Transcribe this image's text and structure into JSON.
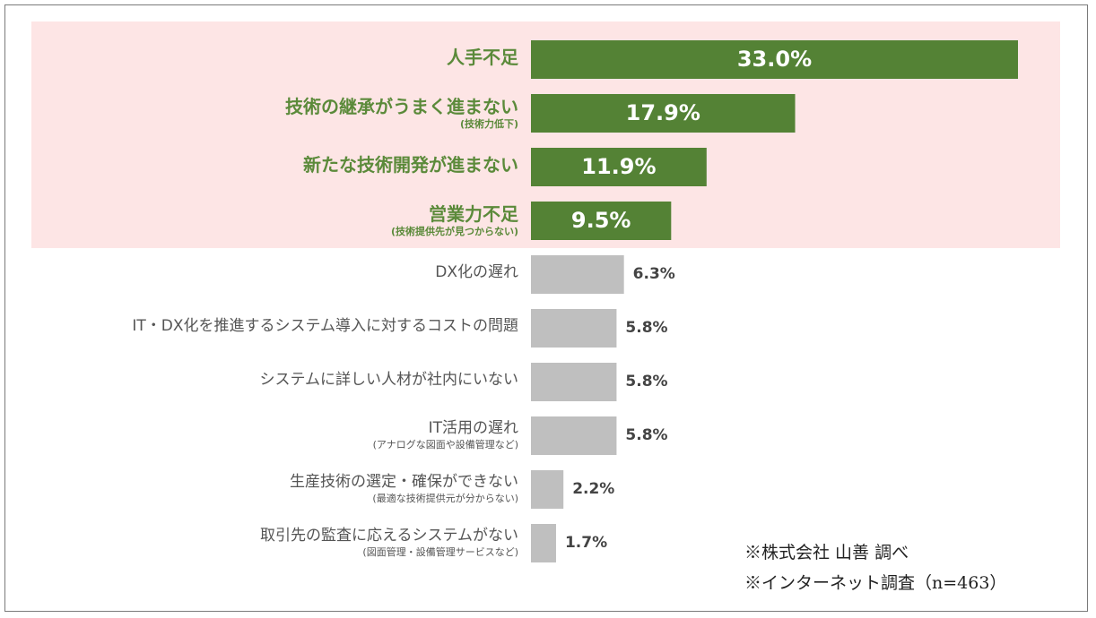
{
  "colors": {
    "highlight_bar": "#548235",
    "normal_bar": "#bfbfbf",
    "highlight_bg": "#fde5e5",
    "highlight_text": "#5b8a3a"
  },
  "chart_data": {
    "type": "bar",
    "orientation": "horizontal",
    "title": "",
    "xlabel": "",
    "ylabel": "",
    "xlim": [
      0,
      33.0
    ],
    "grid": false,
    "legend": "none",
    "unit": "%",
    "categories": [
      {
        "label": "人手不足",
        "sub": "",
        "highlight": true
      },
      {
        "label": "技術の継承がうまく進まない",
        "sub": "(技術力低下)",
        "highlight": true
      },
      {
        "label": "新たな技術開発が進まない",
        "sub": "",
        "highlight": true
      },
      {
        "label": "営業力不足",
        "sub": "(技術提供先が見つからない)",
        "highlight": true
      },
      {
        "label": "DX化の遅れ",
        "sub": "",
        "highlight": false
      },
      {
        "label": "IT・DX化を推進するシステム導入に対するコストの問題",
        "sub": "",
        "highlight": false
      },
      {
        "label": "システムに詳しい人材が社内にいない",
        "sub": "",
        "highlight": false
      },
      {
        "label": "IT活用の遅れ",
        "sub": "(アナログな図面や設備管理など)",
        "highlight": false
      },
      {
        "label": "生産技術の選定・確保ができない",
        "sub": "(最適な技術提供元が分からない)",
        "highlight": false
      },
      {
        "label": "取引先の監査に応えるシステムがない",
        "sub": "(図面管理・設備管理サービスなど)",
        "highlight": false
      }
    ],
    "values": [
      33.0,
      17.9,
      11.9,
      9.5,
      6.3,
      5.8,
      5.8,
      5.8,
      2.2,
      1.7
    ],
    "value_labels": [
      "33.0%",
      "17.9%",
      "11.9%",
      "9.5%",
      "6.3%",
      "5.8%",
      "5.8%",
      "5.8%",
      "2.2%",
      "1.7%"
    ]
  },
  "notes": {
    "source": "※株式会社 山善 調べ",
    "survey": "※インターネット調査（n=463）"
  }
}
